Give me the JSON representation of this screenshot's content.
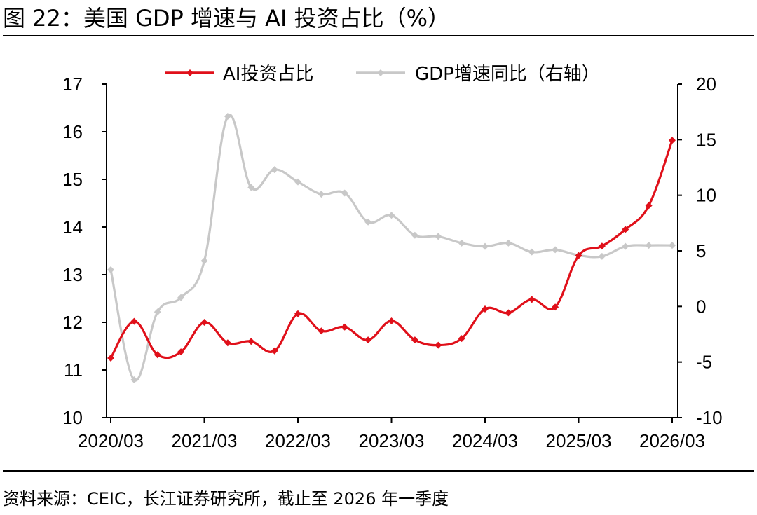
{
  "figure": {
    "title": "图 22：美国 GDP 增速与 AI 投资占比（%）",
    "source": "资料来源：CEIC，长江证券研究所，截止至 2026 年一季度"
  },
  "chart_data": {
    "type": "line",
    "x": [
      "2020/03",
      "2020/06",
      "2020/09",
      "2020/12",
      "2021/03",
      "2021/06",
      "2021/09",
      "2021/12",
      "2022/03",
      "2022/06",
      "2022/09",
      "2022/12",
      "2023/03",
      "2023/06",
      "2023/09",
      "2023/12",
      "2024/03",
      "2024/06",
      "2024/09",
      "2024/12",
      "2025/03",
      "2025/06",
      "2025/09",
      "2025/12",
      "2026/03"
    ],
    "x_tick_labels": [
      "2020/03",
      "2021/03",
      "2022/03",
      "2023/03",
      "2024/03",
      "2025/03",
      "2026/03"
    ],
    "left_axis": {
      "ylim": [
        10,
        17
      ],
      "ticks": [
        "10",
        "11",
        "12",
        "13",
        "14",
        "15",
        "16",
        "17"
      ]
    },
    "right_axis": {
      "ylim": [
        -10,
        20
      ],
      "ticks": [
        "-10",
        "-5",
        "0",
        "5",
        "10",
        "15",
        "20"
      ]
    },
    "legend_position": "top",
    "grid": false,
    "series": [
      {
        "name": "AI投资占比",
        "axis": "left",
        "color": "#e0101a",
        "marker": "diamond",
        "values": [
          11.25,
          12.02,
          11.32,
          11.38,
          12.0,
          11.57,
          11.6,
          11.4,
          12.18,
          11.82,
          11.9,
          11.63,
          12.03,
          11.63,
          11.52,
          11.66,
          12.28,
          12.2,
          12.48,
          12.32,
          13.4,
          13.6,
          13.95,
          14.45,
          15.82
        ]
      },
      {
        "name": "GDP增速同比（右轴）",
        "axis": "right",
        "color": "#c8c8c8",
        "marker": "diamond",
        "values": [
          3.3,
          -6.6,
          -0.5,
          0.8,
          4.1,
          17.1,
          10.7,
          12.3,
          11.2,
          10.1,
          10.2,
          7.6,
          8.2,
          6.4,
          6.3,
          5.7,
          5.4,
          5.7,
          4.9,
          5.1,
          4.6,
          4.5,
          5.4,
          5.5,
          5.5
        ]
      }
    ]
  }
}
